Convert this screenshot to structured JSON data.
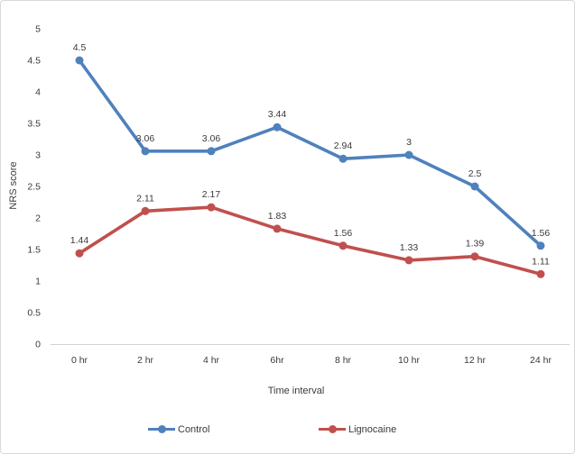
{
  "figure": {
    "background": "#ffffff",
    "border_color": "#d9d9d9"
  },
  "chart_data": {
    "type": "line",
    "title": "",
    "xlabel": "Time interval",
    "ylabel": "NRS score",
    "categories": [
      "0 hr",
      "2 hr",
      "4 hr",
      "6hr",
      "8 hr",
      "10 hr",
      "12 hr",
      "24 hr"
    ],
    "series": [
      {
        "name": "Control",
        "color": "#4F81BD",
        "values": [
          4.5,
          3.06,
          3.06,
          3.44,
          2.94,
          3,
          2.5,
          1.56
        ],
        "labels": [
          "4.5",
          "3.06",
          "3.06",
          "3.44",
          "2.94",
          "3",
          "2.5",
          "1.56"
        ]
      },
      {
        "name": "Lignocaine",
        "color": "#C0504D",
        "values": [
          1.44,
          2.11,
          2.17,
          1.83,
          1.56,
          1.33,
          1.39,
          1.11
        ],
        "labels": [
          "1.44",
          "2.11",
          "2.17",
          "1.83",
          "1.56",
          "1.33",
          "1.39",
          "1.11"
        ]
      }
    ],
    "ylim": [
      0,
      5
    ],
    "y_tick_labels": [
      "0",
      "0.5",
      "1",
      "1.5",
      "2",
      "2.5",
      "3",
      "3.5",
      "4",
      "4.5",
      "5"
    ],
    "y_tick_values": [
      0,
      0.5,
      1,
      1.5,
      2,
      2.5,
      3,
      3.5,
      4,
      4.5,
      5
    ],
    "grid": false,
    "legend_position": "bottom",
    "axis_line_color": "#d3d3d3",
    "text_color": "#3a3a3a"
  }
}
